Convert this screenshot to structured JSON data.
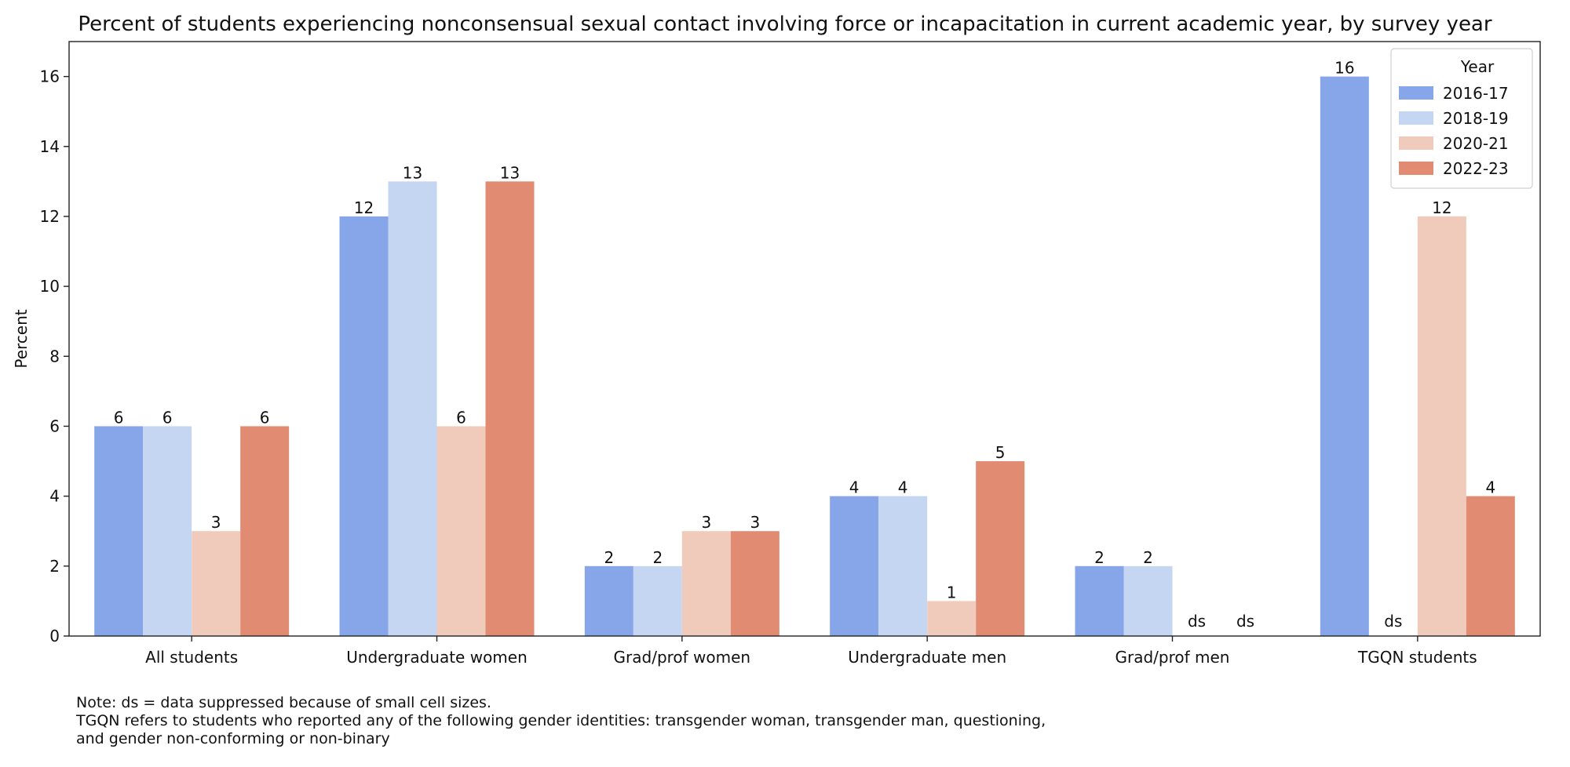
{
  "chart_data": {
    "type": "bar",
    "title": "Percent of students experiencing nonconsensual sexual contact involving force or incapacitation in current academic year, by survey year",
    "xlabel": "",
    "ylabel": "Percent",
    "ylim": [
      0,
      17
    ],
    "yticks": [
      0,
      2,
      4,
      6,
      8,
      10,
      12,
      14,
      16
    ],
    "categories": [
      "All students",
      "Undergraduate women",
      "Grad/prof women",
      "Undergraduate men",
      "Grad/prof men",
      "TGQN students"
    ],
    "legend_title": "Year",
    "legend_position": "top-right",
    "grid": false,
    "series": [
      {
        "name": "2016-17",
        "color": "#87a5e9",
        "values": [
          6,
          12,
          2,
          4,
          2,
          16
        ],
        "labels": [
          "6",
          "12",
          "2",
          "4",
          "2",
          "16"
        ]
      },
      {
        "name": "2018-19",
        "color": "#c5d6f2",
        "values": [
          6,
          13,
          2,
          4,
          2,
          null
        ],
        "labels": [
          "6",
          "13",
          "2",
          "4",
          "2",
          "ds"
        ]
      },
      {
        "name": "2020-21",
        "color": "#f0cbbb",
        "values": [
          3,
          6,
          3,
          1,
          null,
          12
        ],
        "labels": [
          "3",
          "6",
          "3",
          "1",
          "ds",
          "12"
        ]
      },
      {
        "name": "2022-23",
        "color": "#e08b72",
        "values": [
          6,
          13,
          3,
          5,
          null,
          4
        ],
        "labels": [
          "6",
          "13",
          "3",
          "5",
          "ds",
          "4"
        ]
      }
    ]
  },
  "note": {
    "lines": [
      "Note: ds = data suppressed because of small cell sizes.",
      "TGQN refers to students who reported any of the following gender identities: transgender woman, transgender man, questioning,",
      "and gender non-conforming or non-binary"
    ]
  }
}
